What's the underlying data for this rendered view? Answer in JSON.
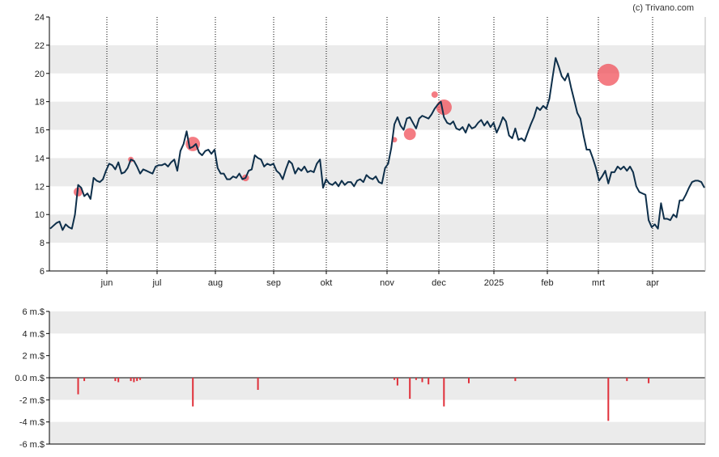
{
  "credit": "(c) Trivano.com",
  "colors": {
    "price_line": "#0e2f4a",
    "marker": "#f0505a",
    "volume_bar": "#e0303a",
    "band": "#ebebeb",
    "axis": "#000000"
  },
  "chart_data": [
    {
      "type": "line",
      "ylim": [
        6,
        24
      ],
      "y_ticks": [
        6,
        8,
        10,
        12,
        14,
        16,
        18,
        20,
        22,
        24
      ],
      "x_tick_labels": [
        "jun",
        "jul",
        "aug",
        "sep",
        "okt",
        "nov",
        "dec",
        "2025",
        "feb",
        "mrt",
        "apr"
      ],
      "grid": "alternating horizontal bands; vertical dotted lines at month ticks",
      "series": [
        {
          "values": [
            9.0,
            9.2,
            9.4,
            9.5,
            8.9,
            9.3,
            9.1,
            9.0,
            10.0,
            12.1,
            11.9,
            11.3,
            11.5,
            11.1,
            12.6,
            12.4,
            12.3,
            12.5,
            13.1,
            13.6,
            13.5,
            13.2,
            13.7,
            12.9,
            13.0,
            13.3,
            13.9,
            13.8,
            13.4,
            12.9,
            13.2,
            13.1,
            13.0,
            12.9,
            13.4,
            13.5,
            13.5,
            13.6,
            13.4,
            13.7,
            13.9,
            13.1,
            14.5,
            15.0,
            15.9,
            14.7,
            14.8,
            15.0,
            14.4,
            14.2,
            14.5,
            14.6,
            14.3,
            14.6,
            13.3,
            12.9,
            12.9,
            12.5,
            12.5,
            12.7,
            12.6,
            12.9,
            12.5,
            12.6,
            13.1,
            13.2,
            14.2,
            14.0,
            13.9,
            13.4,
            13.6,
            13.5,
            13.6,
            13.1,
            12.9,
            12.5,
            13.2,
            13.8,
            13.6,
            12.9,
            13.3,
            13.1,
            13.4,
            13.0,
            13.1,
            13.0,
            13.6,
            13.9,
            11.9,
            12.5,
            12.2,
            12.1,
            12.3,
            12.0,
            12.4,
            12.1,
            12.3,
            12.3,
            12.0,
            12.4,
            12.5,
            12.3,
            12.8,
            12.6,
            12.5,
            12.7,
            12.3,
            12.2,
            13.3,
            13.6,
            14.7,
            16.4,
            16.9,
            16.3,
            16.0,
            16.8,
            16.9,
            16.5,
            16.1,
            16.8,
            17.0,
            16.9,
            16.8,
            17.1,
            17.5,
            17.8,
            18.0,
            16.9,
            16.5,
            16.4,
            16.6,
            16.1,
            16.0,
            16.2,
            15.8,
            16.4,
            16.1,
            16.2,
            16.5,
            16.7,
            16.3,
            16.6,
            16.2,
            16.5,
            15.8,
            16.3,
            16.9,
            16.6,
            15.6,
            15.4,
            16.1,
            15.3,
            15.4,
            15.2,
            15.8,
            16.4,
            16.9,
            17.6,
            17.4,
            17.7,
            17.5,
            18.2,
            19.7,
            21.1,
            20.5,
            19.8,
            19.5,
            20.0,
            19.0,
            18.1,
            17.2,
            16.8,
            15.6,
            14.6,
            14.6,
            14.0,
            13.3,
            12.4,
            12.7,
            13.1,
            12.2,
            13.0,
            13.0,
            13.4,
            13.2,
            13.4,
            13.1,
            13.4,
            13.0,
            12.0,
            11.6,
            11.5,
            11.4,
            9.6,
            9.1,
            9.3,
            9.0,
            10.8,
            9.7,
            9.7,
            9.6,
            10.0,
            9.8,
            11.0,
            11.0,
            11.4,
            11.9,
            12.3,
            12.4,
            12.4,
            12.3,
            11.9
          ]
        }
      ],
      "markers": [
        {
          "index": 9,
          "value": 11.6,
          "size": 1.3
        },
        {
          "index": 26,
          "value": 13.9,
          "size": 0.6
        },
        {
          "index": 46,
          "value": 15.0,
          "size": 2.4
        },
        {
          "index": 63,
          "value": 12.6,
          "size": 0.9
        },
        {
          "index": 111,
          "value": 15.3,
          "size": 0.6
        },
        {
          "index": 116,
          "value": 15.7,
          "size": 1.9
        },
        {
          "index": 124,
          "value": 18.5,
          "size": 0.8
        },
        {
          "index": 127,
          "value": 17.6,
          "size": 2.6
        },
        {
          "index": 180,
          "value": 19.9,
          "size": 3.9
        }
      ]
    },
    {
      "type": "bar",
      "ylim": [
        -6,
        6
      ],
      "y_ticks": [
        -6,
        -4,
        -2,
        0,
        2,
        4,
        6
      ],
      "y_tick_labels": [
        "-6 m.$",
        "-4 m.$",
        "-2 m.$",
        "0.0 m.$",
        "2 m.$",
        "4 m.$",
        "6 m.$"
      ],
      "series": [
        {
          "points": [
            {
              "index": 9,
              "value": -1.5
            },
            {
              "index": 11,
              "value": -0.3
            },
            {
              "index": 21,
              "value": -0.3
            },
            {
              "index": 22,
              "value": -0.4
            },
            {
              "index": 26,
              "value": -0.3
            },
            {
              "index": 27,
              "value": -0.4
            },
            {
              "index": 28,
              "value": -0.3
            },
            {
              "index": 29,
              "value": -0.2
            },
            {
              "index": 46,
              "value": -2.6
            },
            {
              "index": 67,
              "value": -1.1
            },
            {
              "index": 111,
              "value": -0.2
            },
            {
              "index": 112,
              "value": -0.7
            },
            {
              "index": 116,
              "value": -1.9
            },
            {
              "index": 118,
              "value": -0.2
            },
            {
              "index": 120,
              "value": -0.4
            },
            {
              "index": 122,
              "value": -0.6
            },
            {
              "index": 127,
              "value": -2.6
            },
            {
              "index": 135,
              "value": -0.5
            },
            {
              "index": 150,
              "value": -0.3
            },
            {
              "index": 180,
              "value": -3.9
            },
            {
              "index": 186,
              "value": -0.3
            },
            {
              "index": 193,
              "value": -0.5
            }
          ]
        }
      ]
    }
  ]
}
